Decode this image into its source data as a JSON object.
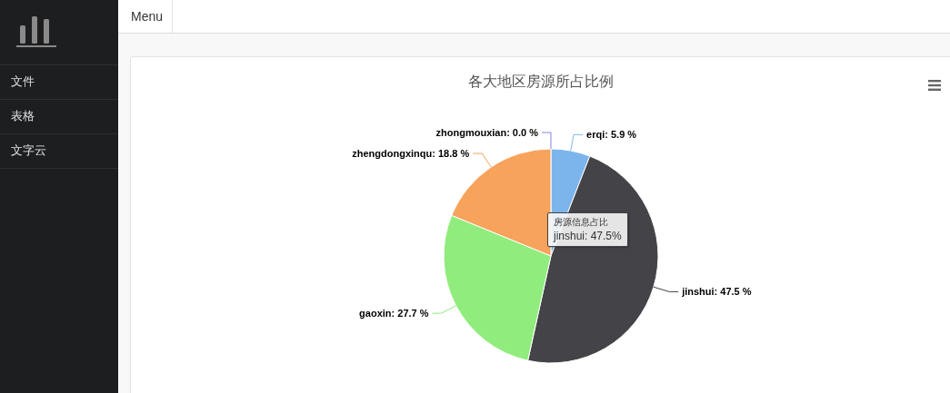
{
  "chart_data": {
    "type": "pie",
    "title": "各大地区房源所占比例",
    "categories": [
      "erqi",
      "jinshui",
      "gaoxin",
      "zhengdongxinqu",
      "zhongmouxian"
    ],
    "values": [
      5.9,
      47.5,
      27.7,
      18.8,
      0.0
    ],
    "colors": [
      "#7cb5ec",
      "#434348",
      "#90ed7d",
      "#f7a35c",
      "#8085e9"
    ],
    "value_labels": [
      ": 5.9 %",
      ": 47.5 %",
      ": 27.7 %",
      ": 18.8 %",
      ": 0.0 %"
    ],
    "annotations": [
      "Menu",
      "文件",
      "表格",
      "文字云",
      "房源信息占比",
      "jinshui: 47.5%"
    ]
  }
}
